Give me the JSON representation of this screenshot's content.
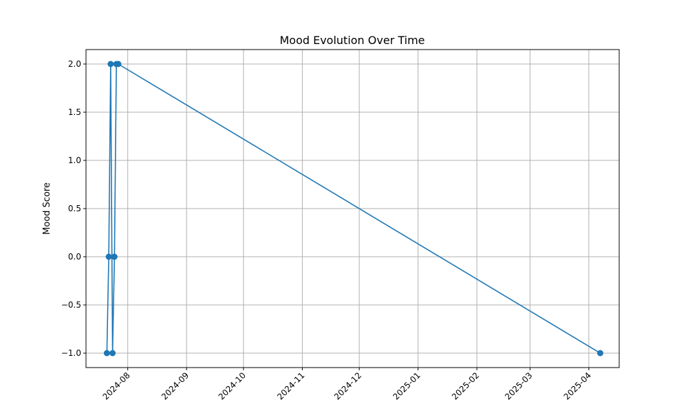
{
  "chart_data": {
    "type": "line",
    "title": "Mood Evolution Over Time",
    "xlabel": "",
    "ylabel": "Mood Score",
    "x_ticks": [
      "2024-08",
      "2024-09",
      "2024-10",
      "2024-11",
      "2024-12",
      "2025-01",
      "2025-02",
      "2025-03",
      "2025-04"
    ],
    "y_ticks": [
      "2.0",
      "1.5",
      "1.0",
      "0.5",
      "0.0",
      "−0.5",
      "−1.0"
    ],
    "ylim": [
      -1.15,
      2.15
    ],
    "xlim": [
      "2024-07-10",
      "2025-04-17"
    ],
    "grid": true,
    "series": [
      {
        "color": "#1f77b4",
        "marker": "circle",
        "points": [
          {
            "x": "2024-07-21",
            "y": -1
          },
          {
            "x": "2024-07-22",
            "y": 0
          },
          {
            "x": "2024-07-23",
            "y": 2
          },
          {
            "x": "2024-07-24",
            "y": -1
          },
          {
            "x": "2024-07-25",
            "y": 0
          },
          {
            "x": "2024-07-26",
            "y": 2
          },
          {
            "x": "2024-07-27",
            "y": 2
          },
          {
            "x": "2025-04-07",
            "y": -1
          }
        ]
      }
    ]
  }
}
